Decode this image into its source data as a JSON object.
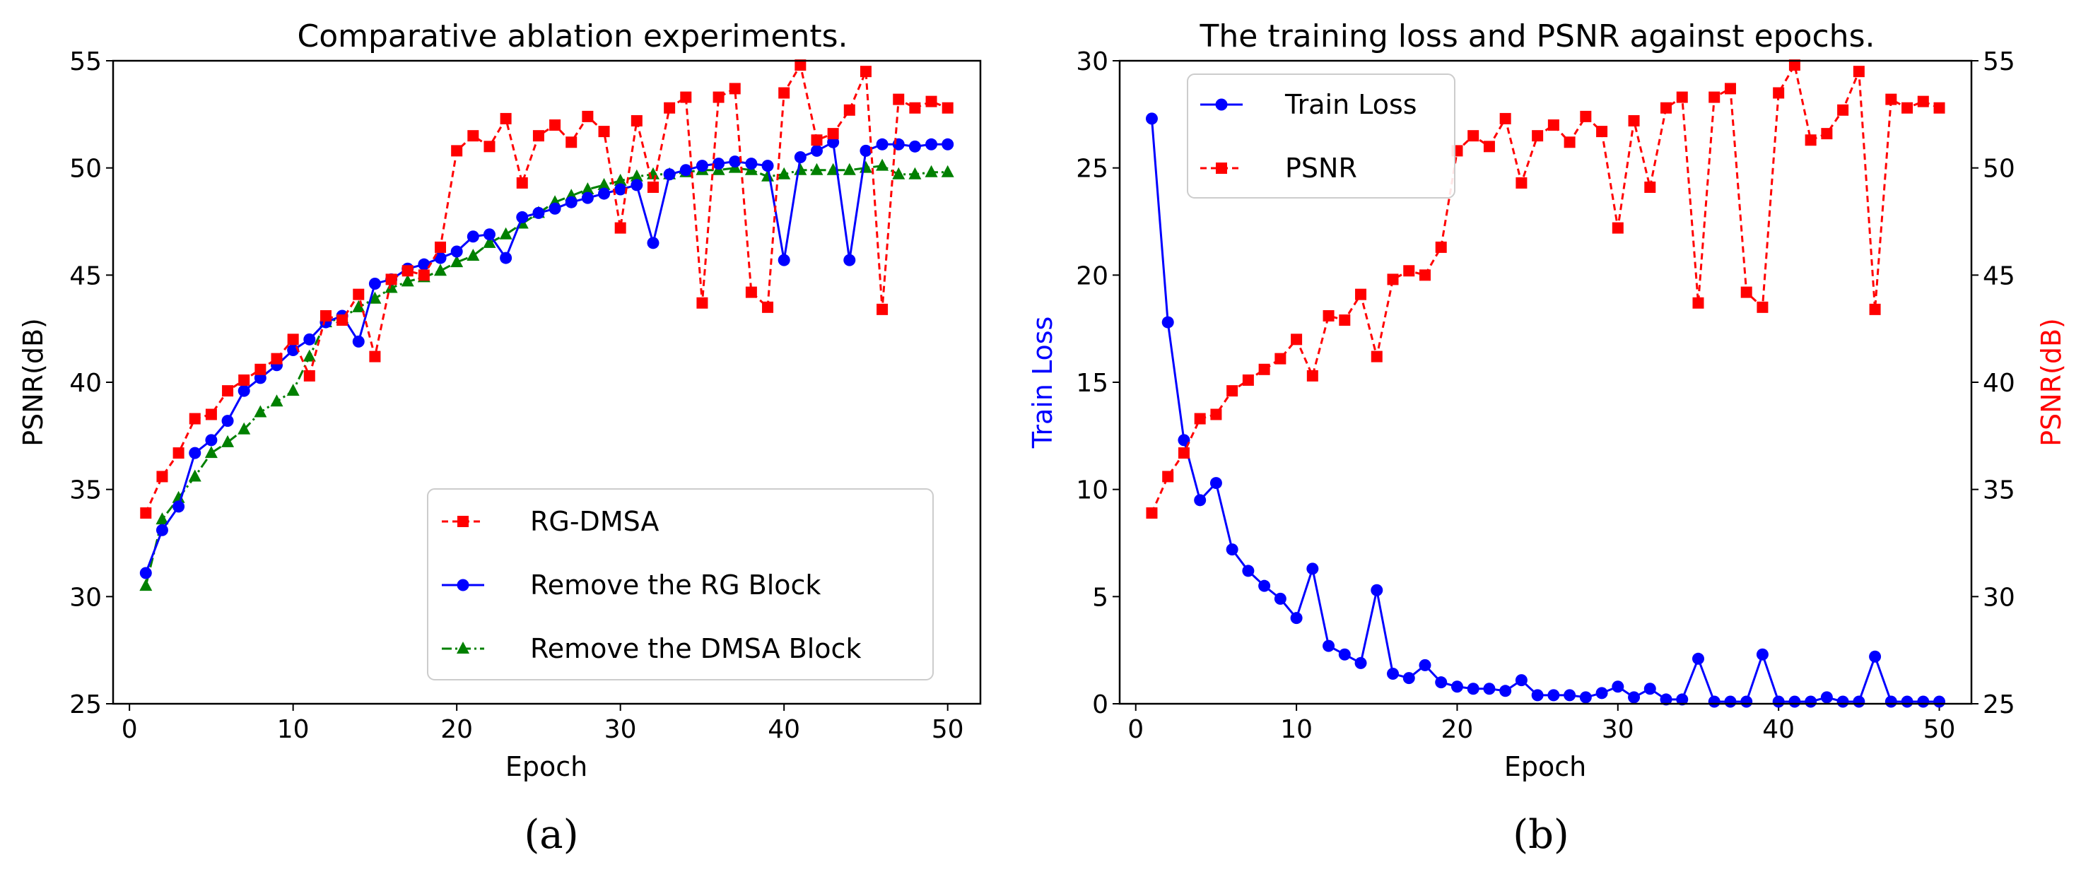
{
  "chart_data": [
    {
      "panel": "(a)",
      "type": "line",
      "title": "Comparative ablation experiments.",
      "xlabel": "Epoch",
      "ylabel": "PSNR(dB)",
      "xlim": [
        -1,
        52
      ],
      "ylim": [
        25,
        55
      ],
      "xticks": [
        0,
        10,
        20,
        30,
        40,
        50
      ],
      "yticks": [
        25,
        30,
        35,
        40,
        45,
        50,
        55
      ],
      "legend_position": "lower-right",
      "series": [
        {
          "name": "RG-DMSA",
          "color": "#ff0000",
          "marker": "square",
          "linestyle": "dashed",
          "x": [
            1,
            2,
            3,
            4,
            5,
            6,
            7,
            8,
            9,
            10,
            11,
            12,
            13,
            14,
            15,
            16,
            17,
            18,
            19,
            20,
            21,
            22,
            23,
            24,
            25,
            26,
            27,
            28,
            29,
            30,
            31,
            32,
            33,
            34,
            35,
            36,
            37,
            38,
            39,
            40,
            41,
            42,
            43,
            44,
            45,
            46,
            47,
            48,
            49,
            50
          ],
          "values": [
            33.9,
            35.6,
            36.7,
            38.3,
            38.5,
            39.6,
            40.1,
            40.6,
            41.1,
            42.0,
            40.3,
            43.1,
            42.9,
            44.1,
            41.2,
            44.8,
            45.2,
            45.0,
            46.3,
            50.8,
            51.5,
            51.0,
            52.3,
            49.3,
            51.5,
            52.0,
            51.2,
            52.4,
            51.7,
            47.2,
            52.2,
            49.1,
            52.8,
            53.3,
            43.7,
            53.3,
            53.7,
            44.2,
            43.5,
            53.5,
            54.8,
            51.3,
            51.6,
            52.7,
            54.5,
            43.4,
            53.2,
            52.8,
            53.1,
            52.8
          ]
        },
        {
          "name": "Remove the RG Block",
          "color": "#0000ff",
          "marker": "circle",
          "linestyle": "solid",
          "x": [
            1,
            2,
            3,
            4,
            5,
            6,
            7,
            8,
            9,
            10,
            11,
            12,
            13,
            14,
            15,
            16,
            17,
            18,
            19,
            20,
            21,
            22,
            23,
            24,
            25,
            26,
            27,
            28,
            29,
            30,
            31,
            32,
            33,
            34,
            35,
            36,
            37,
            38,
            39,
            40,
            41,
            42,
            43,
            44,
            45,
            46,
            47,
            48,
            49,
            50
          ],
          "values": [
            31.1,
            33.1,
            34.2,
            36.7,
            37.3,
            38.2,
            39.6,
            40.2,
            40.8,
            41.5,
            42.0,
            42.8,
            43.1,
            41.9,
            44.6,
            44.8,
            45.3,
            45.5,
            45.8,
            46.1,
            46.8,
            46.9,
            45.8,
            47.7,
            47.9,
            48.1,
            48.4,
            48.6,
            48.8,
            49.0,
            49.2,
            46.5,
            49.7,
            49.9,
            50.1,
            50.2,
            50.3,
            50.2,
            50.1,
            45.7,
            50.5,
            50.8,
            51.2,
            45.7,
            50.8,
            51.1,
            51.1,
            51.0,
            51.1,
            51.1
          ]
        },
        {
          "name": "Remove the DMSA Block",
          "color": "#008000",
          "marker": "triangle",
          "linestyle": "dashdot",
          "x": [
            1,
            2,
            3,
            4,
            5,
            6,
            7,
            8,
            9,
            10,
            11,
            12,
            13,
            14,
            15,
            16,
            17,
            18,
            19,
            20,
            21,
            22,
            23,
            24,
            25,
            26,
            27,
            28,
            29,
            30,
            31,
            32,
            33,
            34,
            35,
            36,
            37,
            38,
            39,
            40,
            41,
            42,
            43,
            44,
            45,
            46,
            47,
            48,
            49,
            50
          ],
          "values": [
            30.5,
            33.6,
            34.6,
            35.6,
            36.7,
            37.2,
            37.8,
            38.6,
            39.1,
            39.6,
            41.2,
            42.8,
            43.0,
            43.5,
            43.9,
            44.4,
            44.7,
            44.9,
            45.2,
            45.6,
            45.9,
            46.5,
            46.9,
            47.4,
            47.9,
            48.4,
            48.7,
            49.0,
            49.2,
            49.4,
            49.6,
            49.7,
            49.7,
            49.8,
            49.9,
            49.9,
            50.0,
            49.9,
            49.6,
            49.7,
            49.9,
            49.9,
            49.9,
            49.9,
            50.0,
            50.1,
            49.7,
            49.7,
            49.8,
            49.8
          ]
        }
      ]
    },
    {
      "panel": "(b)",
      "type": "line",
      "title": "The training loss and PSNR against epochs.",
      "xlabel": "Epoch",
      "ylabel_left": "Train Loss",
      "ylabel_right": "PSNR(dB)",
      "xlim": [
        -1,
        52
      ],
      "ylim_left": [
        0,
        30
      ],
      "ylim_right": [
        25,
        55
      ],
      "xticks": [
        0,
        10,
        20,
        30,
        40,
        50
      ],
      "yticks_left": [
        0,
        5,
        10,
        15,
        20,
        25,
        30
      ],
      "yticks_right": [
        25,
        30,
        35,
        40,
        45,
        50,
        55
      ],
      "legend_position": "top-left",
      "series": [
        {
          "name": "Train Loss",
          "axis": "left",
          "color": "#0000ff",
          "marker": "circle",
          "linestyle": "solid",
          "x": [
            1,
            2,
            3,
            4,
            5,
            6,
            7,
            8,
            9,
            10,
            11,
            12,
            13,
            14,
            15,
            16,
            17,
            18,
            19,
            20,
            21,
            22,
            23,
            24,
            25,
            26,
            27,
            28,
            29,
            30,
            31,
            32,
            33,
            34,
            35,
            36,
            37,
            38,
            39,
            40,
            41,
            42,
            43,
            44,
            45,
            46,
            47,
            48,
            49,
            50
          ],
          "values": [
            27.3,
            17.8,
            12.3,
            9.5,
            10.3,
            7.2,
            6.2,
            5.5,
            4.9,
            4.0,
            6.3,
            2.7,
            2.3,
            1.9,
            5.3,
            1.4,
            1.2,
            1.8,
            1.0,
            0.8,
            0.7,
            0.7,
            0.6,
            1.1,
            0.4,
            0.4,
            0.4,
            0.3,
            0.5,
            0.8,
            0.3,
            0.7,
            0.2,
            0.2,
            2.1,
            0.1,
            0.1,
            0.1,
            2.3,
            0.1,
            0.1,
            0.1,
            0.3,
            0.1,
            0.1,
            2.2,
            0.1,
            0.1,
            0.1,
            0.1
          ]
        },
        {
          "name": "PSNR",
          "axis": "right",
          "color": "#ff0000",
          "marker": "square",
          "linestyle": "dashed",
          "x": [
            1,
            2,
            3,
            4,
            5,
            6,
            7,
            8,
            9,
            10,
            11,
            12,
            13,
            14,
            15,
            16,
            17,
            18,
            19,
            20,
            21,
            22,
            23,
            24,
            25,
            26,
            27,
            28,
            29,
            30,
            31,
            32,
            33,
            34,
            35,
            36,
            37,
            38,
            39,
            40,
            41,
            42,
            43,
            44,
            45,
            46,
            47,
            48,
            49,
            50
          ],
          "values": [
            33.9,
            35.6,
            36.7,
            38.3,
            38.5,
            39.6,
            40.1,
            40.6,
            41.1,
            42.0,
            40.3,
            43.1,
            42.9,
            44.1,
            41.2,
            44.8,
            45.2,
            45.0,
            46.3,
            50.8,
            51.5,
            51.0,
            52.3,
            49.3,
            51.5,
            52.0,
            51.2,
            52.4,
            51.7,
            47.2,
            52.2,
            49.1,
            52.8,
            53.3,
            43.7,
            53.3,
            53.7,
            44.2,
            43.5,
            53.5,
            54.8,
            51.3,
            51.6,
            52.7,
            54.5,
            43.4,
            53.2,
            52.8,
            53.1,
            52.8
          ]
        }
      ]
    }
  ]
}
